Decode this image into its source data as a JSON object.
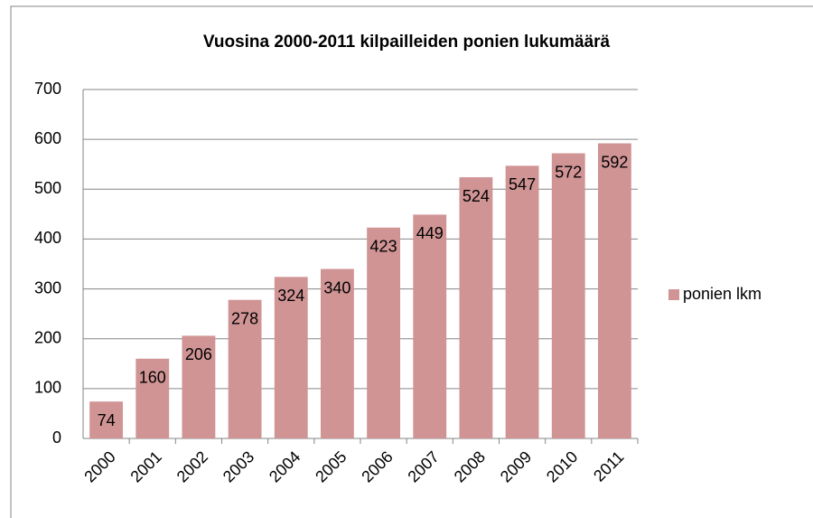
{
  "chart_data": {
    "type": "bar",
    "title": "Vuosina 2000-2011 kilpailleiden ponien lukumäärä",
    "categories": [
      "2000",
      "2001",
      "2002",
      "2003",
      "2004",
      "2005",
      "2006",
      "2007",
      "2008",
      "2009",
      "2010",
      "2011"
    ],
    "series": [
      {
        "name": "ponien lkm",
        "color": "#d09495",
        "values": [
          74,
          160,
          206,
          278,
          324,
          340,
          423,
          449,
          524,
          547,
          572,
          592
        ]
      }
    ],
    "ylim": [
      0,
      700
    ],
    "yticks": [
      0,
      100,
      200,
      300,
      400,
      500,
      600,
      700
    ],
    "grid": true,
    "legend": "right"
  }
}
